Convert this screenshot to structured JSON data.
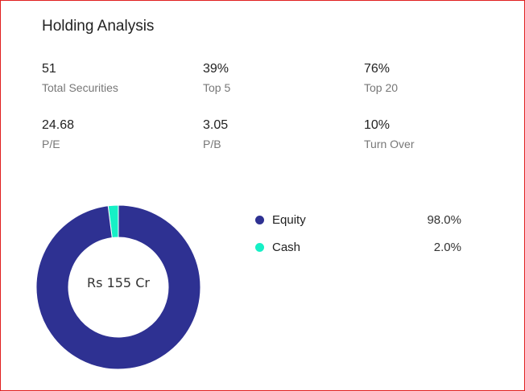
{
  "title": "Holding Analysis",
  "stats": [
    {
      "value": "51",
      "label": "Total Securities"
    },
    {
      "value": "39%",
      "label": "Top 5"
    },
    {
      "value": "76%",
      "label": "Top 20"
    },
    {
      "value": "24.68",
      "label": "P/E"
    },
    {
      "value": "3.05",
      "label": "P/B"
    },
    {
      "value": "10%",
      "label": "Turn Over"
    }
  ],
  "chart_data": {
    "type": "pie",
    "variant": "donut",
    "center_label": "Rs 155 Cr",
    "categories": [
      "Equity",
      "Cash"
    ],
    "values": [
      98.0,
      2.0
    ],
    "value_labels": [
      "98.0%",
      "2.0%"
    ],
    "colors": [
      "#2e3192",
      "#16f0c6"
    ],
    "legend": "right"
  }
}
